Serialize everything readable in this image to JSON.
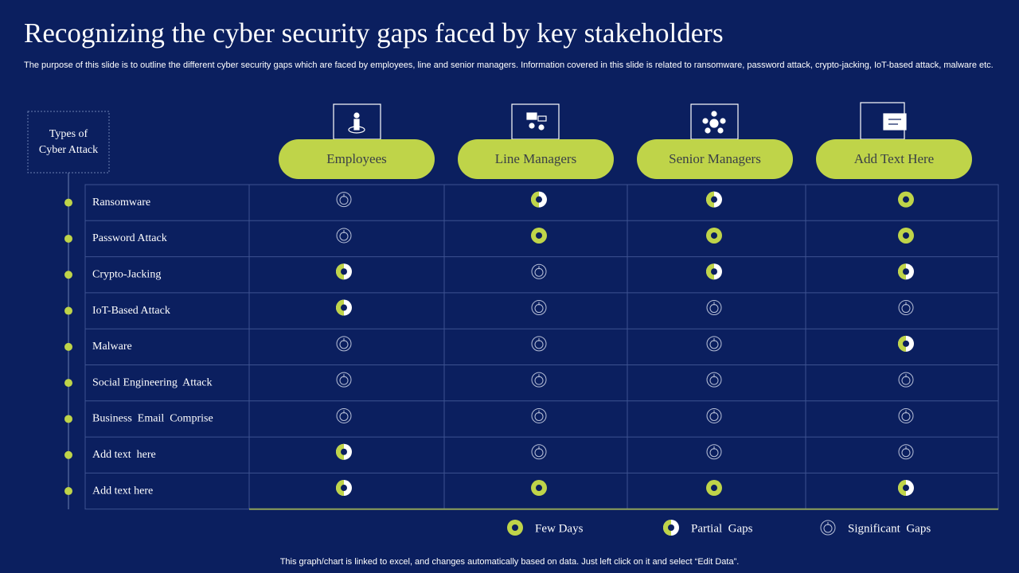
{
  "title": "Recognizing the cyber security gaps faced by key stakeholders",
  "subtitle": "The purpose of this slide is to outline the different cyber security gaps which are faced by employees, line and senior managers. Information covered in this slide is related to ransomware, password attack, crypto-jacking, IoT-based attack, malware etc.",
  "table": {
    "corner": "Types of Cyber Attack",
    "columns": [
      "Employees",
      "Line Managers",
      "Senior Managers",
      "Add Text Here"
    ],
    "rows": [
      {
        "label": "Ransomware",
        "status": [
          2,
          1,
          1,
          0
        ]
      },
      {
        "label": "Password Attack",
        "status": [
          2,
          0,
          0,
          0
        ]
      },
      {
        "label": "Crypto-Jacking",
        "status": [
          1,
          2,
          1,
          1
        ]
      },
      {
        "label": "IoT-Based Attack",
        "status": [
          1,
          2,
          2,
          2
        ]
      },
      {
        "label": "Malware",
        "status": [
          2,
          2,
          2,
          1
        ]
      },
      {
        "label": "Social Engineering  Attack",
        "status": [
          2,
          2,
          2,
          2
        ]
      },
      {
        "label": "Business  Email  Comprise",
        "status": [
          2,
          2,
          2,
          2
        ]
      },
      {
        "label": "Add text  here",
        "status": [
          1,
          2,
          2,
          2
        ]
      },
      {
        "label": "Add text here",
        "status": [
          1,
          0,
          0,
          1
        ]
      }
    ]
  },
  "legend": [
    "Few Days",
    "Partial  Gaps",
    "Significant  Gaps"
  ],
  "footer": "This graph/chart is linked to excel, and changes automatically based on data. Just left click on it and select “Edit Data”."
}
